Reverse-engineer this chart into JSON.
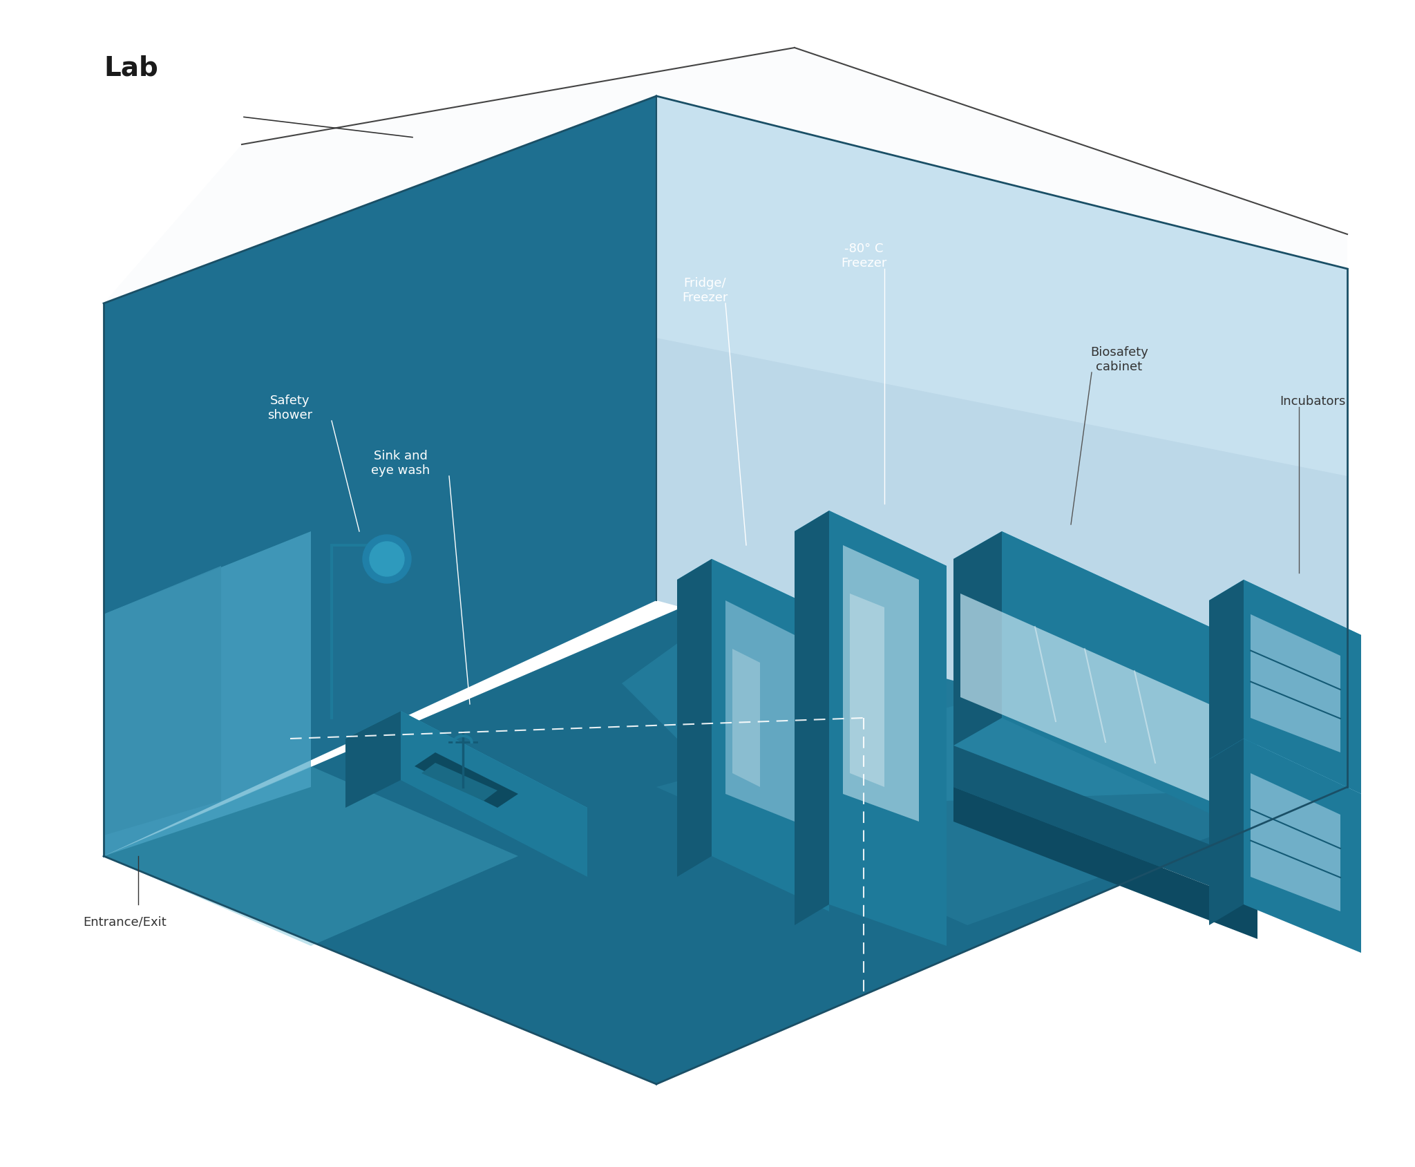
{
  "background_color": "#ffffff",
  "title": "Lab",
  "title_fontsize": 28,
  "title_color": "#222222",
  "label_fontsize": 13,
  "label_color": "#333333",
  "colors": {
    "floor_main": "#1b6b8a",
    "floor_light": "#2a8aaa",
    "wall_back": "#1a5570",
    "wall_right": "#bcd8e8",
    "wall_left": "#1e6f90",
    "wall_accent": "#154f6a",
    "equipment_dark": "#145a75",
    "equipment_mid": "#1e7a9a",
    "equipment_light": "#2e9abd",
    "equipment_glass": "#a8d4e8",
    "equipment_glass2": "#c5e4f0",
    "door_color": "#4ea8c8",
    "entry_color": "#7ec8dd",
    "shower_head": "#2080a8",
    "sink_color": "#1a6888"
  },
  "labels": {
    "lab": "Lab",
    "safety_shower": "Safety\nshower",
    "sink": "Sink and\neye wash",
    "fridge": "Fridge/\nFreezer",
    "freezer": "-80° C\nFreezer",
    "biosafety": "Biosafety\ncabinet",
    "incubators": "Incubators",
    "entrance": "Entrance/Exit"
  }
}
